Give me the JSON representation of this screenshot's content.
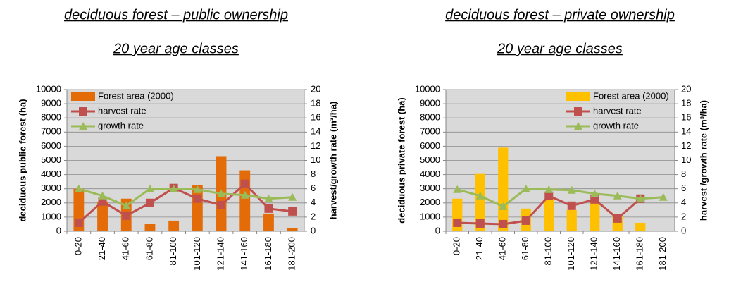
{
  "chart_data": [
    {
      "type": "bar-line",
      "title": "deciduous forest – public ownership",
      "subtitle": "20 year age classes",
      "categories": [
        "0-20",
        "21-40",
        "41-60",
        "61-80",
        "81-100",
        "101-120",
        "121-140",
        "141-160",
        "161-180",
        "181-200"
      ],
      "series": [
        {
          "name": "Forest area (2000)",
          "type": "bar",
          "axis": "y",
          "color": "#e36c09",
          "values": [
            3000,
            2100,
            2300,
            500,
            750,
            3250,
            5300,
            4300,
            1250,
            200
          ]
        },
        {
          "name": "harvest rate",
          "type": "line",
          "marker": "square",
          "axis": "y2",
          "color": "#c0504d",
          "values": [
            1.2,
            4.2,
            2.2,
            4.0,
            6.1,
            4.6,
            3.7,
            6.7,
            3.2,
            2.8
          ]
        },
        {
          "name": "growth rate",
          "type": "line",
          "marker": "triangle",
          "axis": "y2",
          "color": "#9bbb59",
          "values": [
            6.0,
            5.0,
            3.6,
            6.0,
            6.0,
            5.9,
            5.3,
            5.1,
            4.6,
            4.8
          ]
        }
      ],
      "ylabel": "deciduous public forest (ha)",
      "y2label": "harvest/growth rate (m³/ha)",
      "ylim": [
        0,
        10000
      ],
      "yticks": [
        0,
        1000,
        2000,
        3000,
        4000,
        5000,
        6000,
        7000,
        8000,
        9000,
        10000
      ],
      "y2lim": [
        0,
        20
      ],
      "y2ticks": [
        0,
        2,
        4,
        6,
        8,
        10,
        12,
        14,
        16,
        18,
        20
      ],
      "grid": true,
      "legend": "upper left"
    },
    {
      "type": "bar-line",
      "title": "deciduous forest – private ownership",
      "subtitle": "20 year age classes",
      "categories": [
        "0-20",
        "21-40",
        "41-60",
        "61-80",
        "81-100",
        "101-120",
        "121-140",
        "141-160",
        "161-180",
        "181-200"
      ],
      "series": [
        {
          "name": "Forest area (2000)",
          "type": "bar",
          "axis": "y",
          "color": "#ffc000",
          "values": [
            2300,
            4050,
            5900,
            1600,
            2300,
            1500,
            2100,
            1200,
            600,
            0
          ]
        },
        {
          "name": "harvest rate",
          "type": "line",
          "marker": "square",
          "axis": "y2",
          "color": "#c0504d",
          "values": [
            1.2,
            1.1,
            1.0,
            1.5,
            5.0,
            3.6,
            4.5,
            1.8,
            4.6,
            null
          ]
        },
        {
          "name": "growth rate",
          "type": "line",
          "marker": "triangle",
          "axis": "y2",
          "color": "#9bbb59",
          "values": [
            5.9,
            5.0,
            3.5,
            6.0,
            5.9,
            5.8,
            5.3,
            5.0,
            4.6,
            4.8
          ]
        }
      ],
      "ylabel": "deciduous private forest (ha)",
      "y2label": "harvest /growth rate (m³/ha)",
      "ylim": [
        0,
        10000
      ],
      "yticks": [
        0,
        1000,
        2000,
        3000,
        4000,
        5000,
        6000,
        7000,
        8000,
        9000,
        10000
      ],
      "y2lim": [
        0,
        20
      ],
      "y2ticks": [
        0,
        2,
        4,
        6,
        8,
        10,
        12,
        14,
        16,
        18,
        20
      ],
      "grid": true,
      "legend": "upper right"
    }
  ]
}
